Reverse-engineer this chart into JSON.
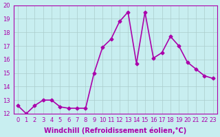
{
  "x": [
    0,
    1,
    2,
    3,
    4,
    5,
    6,
    7,
    8,
    9,
    10,
    11,
    12,
    13,
    14,
    15,
    16,
    17,
    18,
    19,
    20,
    21,
    22,
    23
  ],
  "y": [
    12.6,
    12.0,
    12.6,
    13.0,
    13.0,
    12.5,
    12.4,
    12.4,
    12.4,
    15.0,
    16.9,
    17.5,
    18.8,
    19.5,
    15.7,
    19.5,
    16.1,
    16.5,
    17.7,
    17.0,
    15.8,
    15.3,
    14.8,
    14.6
  ],
  "line_color": "#aa00aa",
  "marker": "D",
  "marker_size": 2.5,
  "background_color": "#c8eef0",
  "grid_color": "#aacccc",
  "xlabel": "Windchill (Refroidissement éolien,°C)",
  "xlabel_fontsize": 7.0,
  "ylim": [
    12,
    20
  ],
  "xlim_min": -0.5,
  "xlim_max": 23.5,
  "yticks": [
    12,
    13,
    14,
    15,
    16,
    17,
    18,
    19,
    20
  ],
  "xticks": [
    0,
    1,
    2,
    3,
    4,
    5,
    6,
    7,
    8,
    9,
    10,
    11,
    12,
    13,
    14,
    15,
    16,
    17,
    18,
    19,
    20,
    21,
    22,
    23
  ],
  "tick_fontsize": 6.0,
  "line_width": 1.2
}
